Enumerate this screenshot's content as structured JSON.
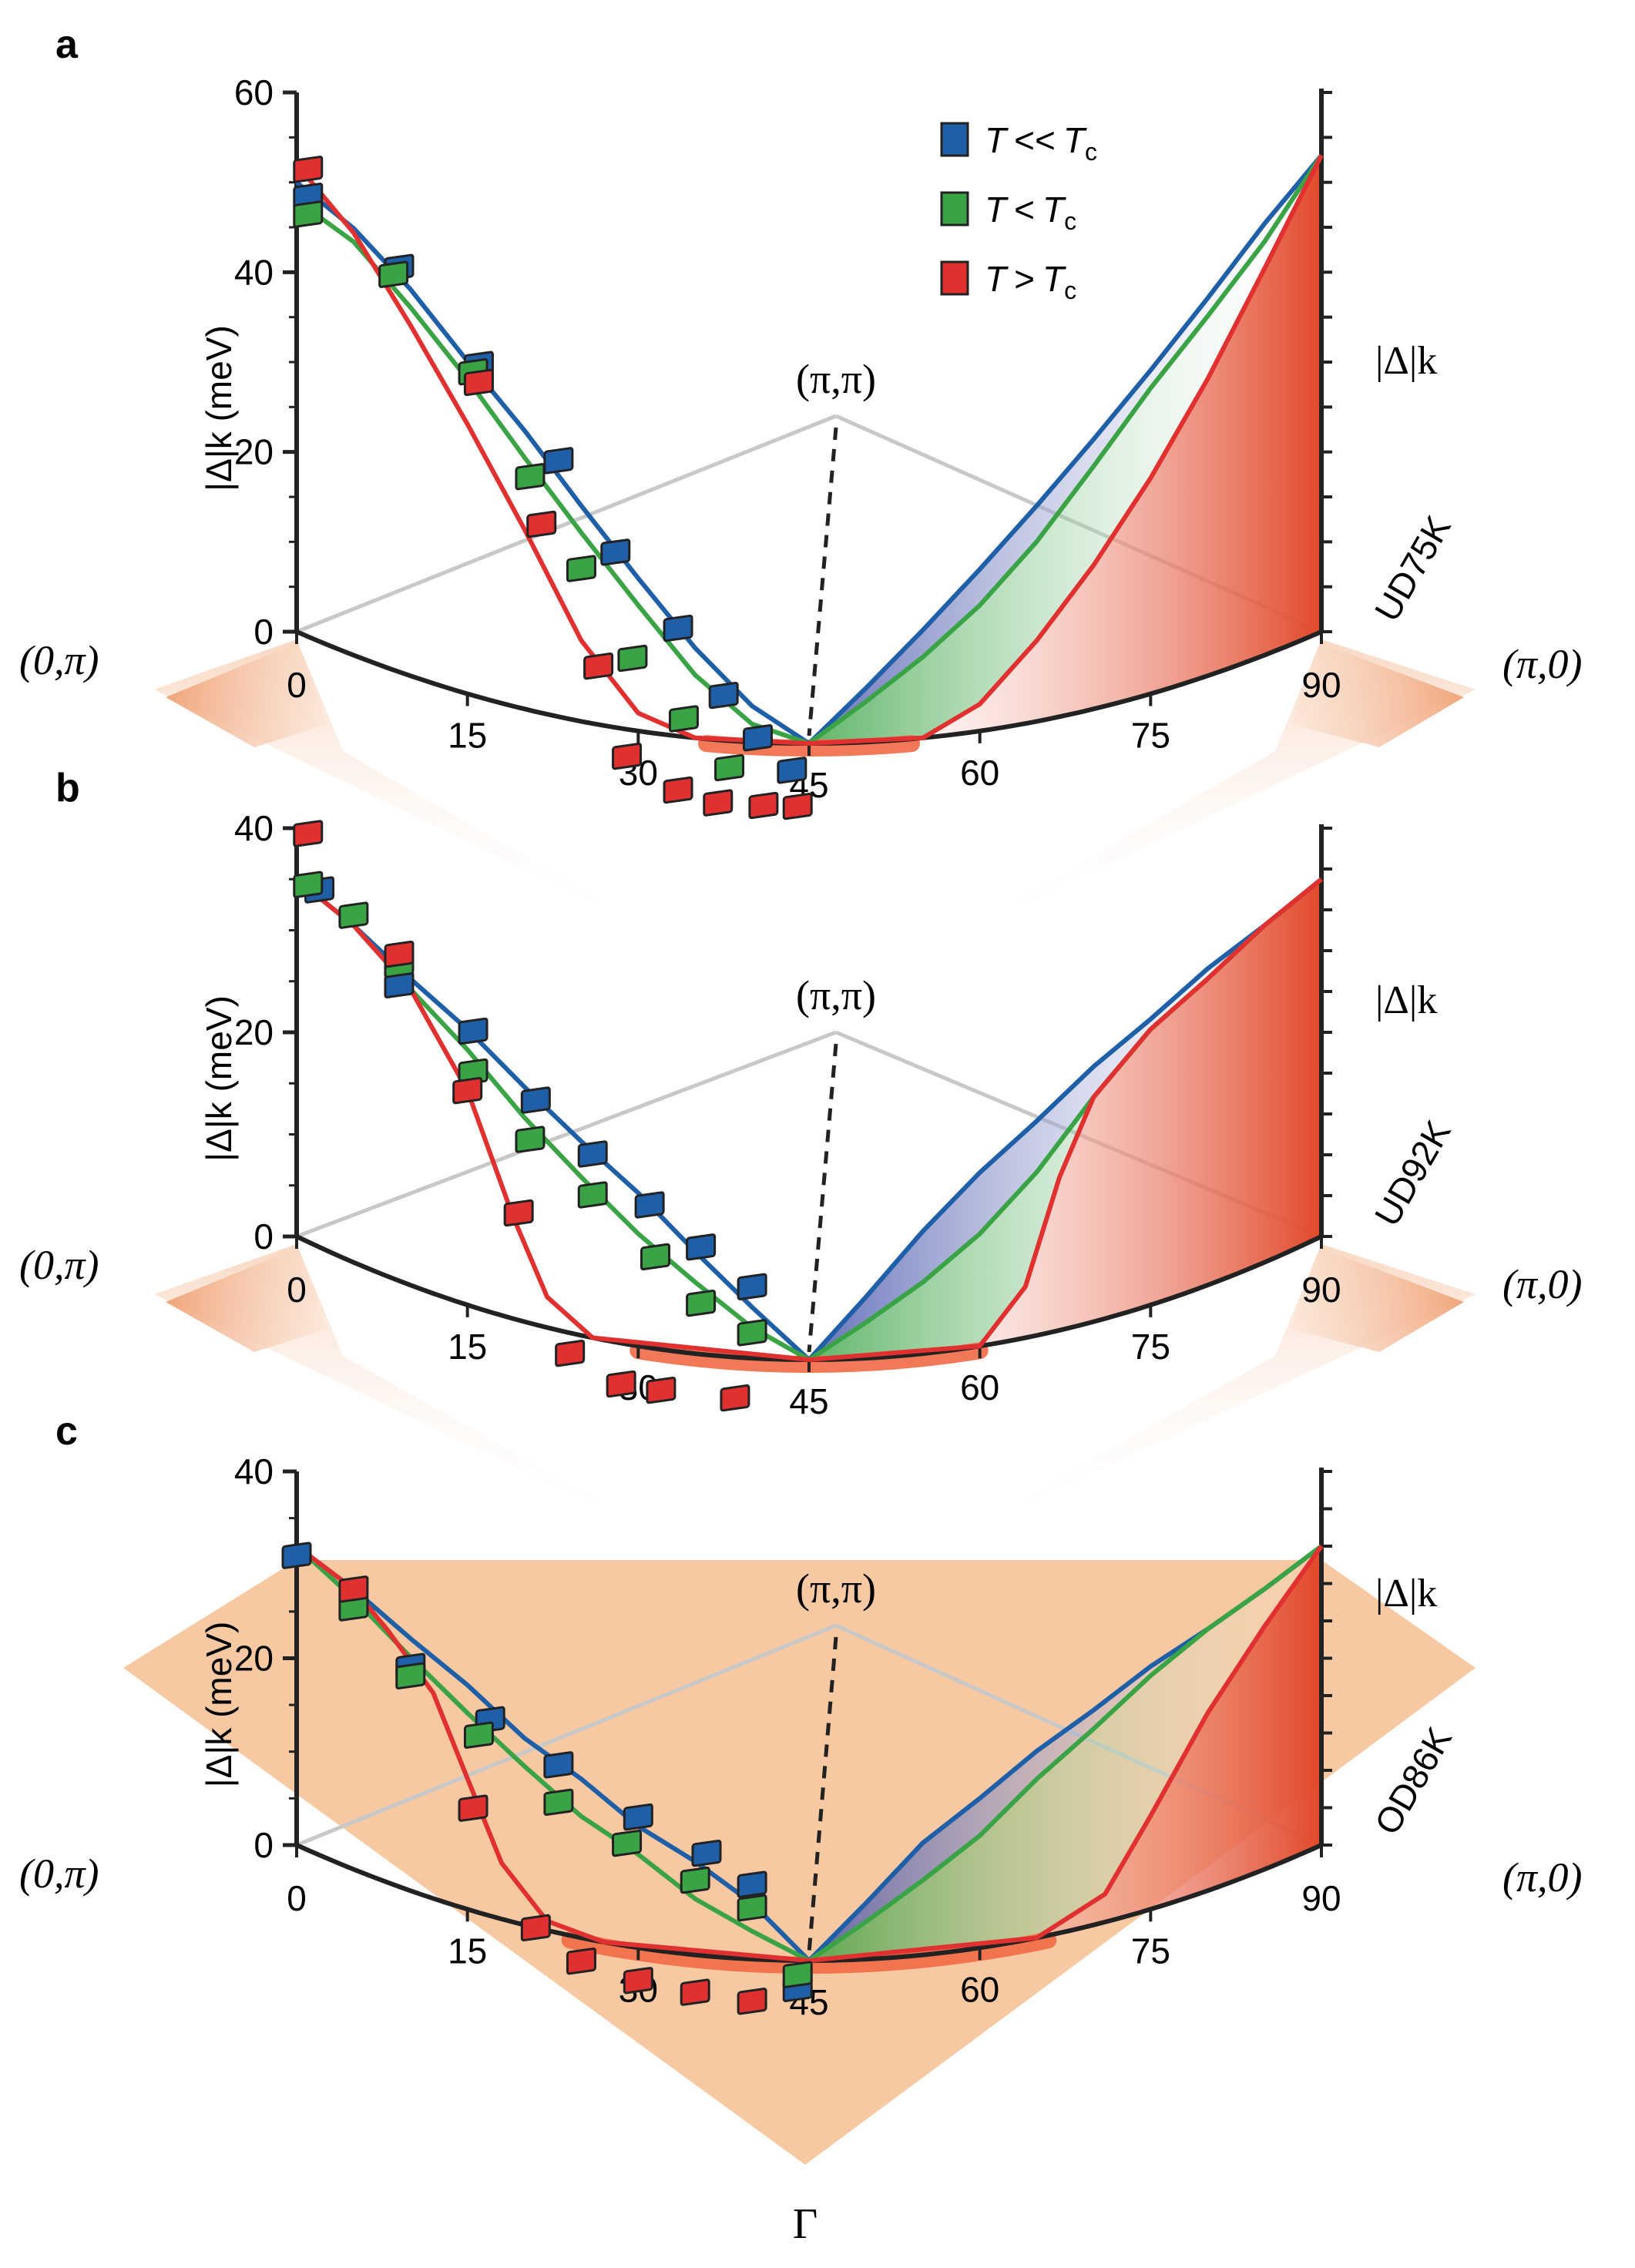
{
  "chart_data": [
    {
      "type": "scatter",
      "panel": "a",
      "sample": "UD75K",
      "ylabel": "|Δ|k (meV)",
      "right_label": "|Δ|k",
      "ylim": [
        0,
        60
      ],
      "yticks": [
        0,
        20,
        40,
        60
      ],
      "xlim": [
        0,
        90
      ],
      "xticks": [
        0,
        15,
        30,
        45,
        60,
        75,
        90
      ],
      "series": [
        {
          "name": "T << Tc",
          "color": "#1f5fa8",
          "points": [
            [
              1,
              49
            ],
            [
              9,
              45
            ],
            [
              16,
              37
            ],
            [
              23,
              28.5
            ],
            [
              28,
              19.5
            ],
            [
              33.5,
              12
            ],
            [
              37.5,
              5
            ],
            [
              40.5,
              0.5
            ],
            [
              43.5,
              -3
            ]
          ],
          "curve": [
            [
              0,
              50
            ],
            [
              5,
              47.5
            ],
            [
              10,
              43
            ],
            [
              15,
              37
            ],
            [
              20,
              31
            ],
            [
              25,
              24
            ],
            [
              30,
              17
            ],
            [
              35,
              10
            ],
            [
              40,
              4
            ],
            [
              45,
              0
            ],
            [
              50,
              6
            ],
            [
              55,
              12
            ],
            [
              60,
              18
            ],
            [
              65,
              24
            ],
            [
              70,
              30
            ],
            [
              75,
              36
            ],
            [
              80,
              42
            ],
            [
              85,
              48
            ],
            [
              90,
              53
            ]
          ]
        },
        {
          "name": "T < Tc",
          "color": "#3aa345",
          "points": [
            [
              1,
              47
            ],
            [
              8.5,
              44
            ],
            [
              15.5,
              36
            ],
            [
              20.5,
              26
            ],
            [
              25,
              17
            ],
            [
              29.5,
              8
            ],
            [
              34,
              2
            ],
            [
              38,
              -3
            ]
          ],
          "curve": [
            [
              0,
              48
            ],
            [
              5,
              46
            ],
            [
              10,
              41
            ],
            [
              15,
              35
            ],
            [
              20,
              28
            ],
            [
              25,
              21
            ],
            [
              30,
              14
            ],
            [
              35,
              7
            ],
            [
              40,
              2
            ],
            [
              45,
              0
            ],
            [
              50,
              4.5
            ],
            [
              55,
              9
            ],
            [
              60,
              14
            ],
            [
              65,
              20
            ],
            [
              70,
              27
            ],
            [
              75,
              34
            ],
            [
              80,
              40
            ],
            [
              85,
              46
            ],
            [
              90,
              53
            ]
          ]
        },
        {
          "name": "T > Tc",
          "color": "#e03030",
          "points": [
            [
              1,
              52
            ],
            [
              16,
              35
            ],
            [
              21.5,
              21
            ],
            [
              26.5,
              6.5
            ],
            [
              29,
              -3
            ],
            [
              33.5,
              -6
            ],
            [
              37,
              -7
            ],
            [
              41,
              -7
            ],
            [
              44,
              -7
            ]
          ],
          "curve": [
            [
              0,
              52
            ],
            [
              5,
              47
            ],
            [
              10,
              39
            ],
            [
              15,
              30
            ],
            [
              20,
              20
            ],
            [
              25,
              9
            ],
            [
              30,
              2
            ],
            [
              35,
              0
            ],
            [
              45,
              0
            ],
            [
              55,
              0
            ],
            [
              60,
              3
            ],
            [
              65,
              9
            ],
            [
              70,
              16
            ],
            [
              75,
              24
            ],
            [
              80,
              33
            ],
            [
              85,
              43
            ],
            [
              90,
              53
            ]
          ]
        }
      ]
    },
    {
      "type": "scatter",
      "panel": "b",
      "sample": "UD92K",
      "ylabel": "|Δ|k (meV)",
      "right_label": "|Δ|k",
      "ylim": [
        0,
        40
      ],
      "yticks": [
        0,
        20,
        40
      ],
      "xlim": [
        0,
        90
      ],
      "xticks": [
        0,
        15,
        30,
        45,
        60,
        75,
        90
      ],
      "series": [
        {
          "name": "T << Tc",
          "color": "#1f5fa8",
          "points": [
            [
              2,
              35
            ],
            [
              9,
              29
            ],
            [
              15.5,
              27
            ],
            [
              21,
              22
            ],
            [
              26,
              18
            ],
            [
              31,
              14
            ],
            [
              35.5,
              10.5
            ],
            [
              40,
              7
            ]
          ],
          "curve": [
            [
              0,
              35
            ],
            [
              5,
              33
            ],
            [
              10,
              30
            ],
            [
              15,
              27
            ],
            [
              20,
              23
            ],
            [
              25,
              19
            ],
            [
              30,
              15
            ],
            [
              35,
              10
            ],
            [
              40,
              5
            ],
            [
              45,
              0
            ],
            [
              50,
              6
            ],
            [
              55,
              12
            ],
            [
              60,
              17
            ],
            [
              65,
              21
            ],
            [
              70,
              25
            ],
            [
              75,
              28
            ],
            [
              80,
              31
            ],
            [
              85,
              33
            ],
            [
              90,
              35
            ]
          ]
        },
        {
          "name": "T < Tc",
          "color": "#3aa345",
          "points": [
            [
              1,
              35
            ],
            [
              5,
              34
            ],
            [
              9,
              31
            ],
            [
              15.5,
              23
            ],
            [
              20.5,
              18
            ],
            [
              26,
              14
            ],
            [
              31.5,
              9
            ],
            [
              35.5,
              5
            ],
            [
              40,
              2.5
            ]
          ],
          "curve": [
            [
              0,
              35
            ],
            [
              5,
              33
            ],
            [
              10,
              29
            ],
            [
              15,
              25
            ],
            [
              20,
              20
            ],
            [
              25,
              15.5
            ],
            [
              30,
              11
            ],
            [
              35,
              7
            ],
            [
              40,
              3
            ],
            [
              45,
              0
            ],
            [
              50,
              3.5
            ],
            [
              55,
              7
            ],
            [
              60,
              11
            ],
            [
              65,
              16
            ],
            [
              70,
              22
            ],
            [
              75,
              27
            ],
            [
              80,
              30
            ],
            [
              85,
              33
            ],
            [
              90,
              35
            ]
          ]
        },
        {
          "name": "T > Tc",
          "color": "#e03030",
          "points": [
            [
              1,
              40
            ],
            [
              9,
              32
            ],
            [
              15,
              21
            ],
            [
              19.5,
              10.5
            ],
            [
              24,
              -2
            ],
            [
              28.5,
              -4
            ],
            [
              32,
              -4
            ],
            [
              38.5,
              -4
            ]
          ],
          "curve": [
            [
              0,
              35
            ],
            [
              5,
              33
            ],
            [
              10,
              29
            ],
            [
              15,
              21
            ],
            [
              19,
              10
            ],
            [
              22,
              3
            ],
            [
              26,
              0
            ],
            [
              45,
              0
            ],
            [
              60,
              0
            ],
            [
              64,
              5
            ],
            [
              67,
              15
            ],
            [
              70,
              22
            ],
            [
              75,
              27
            ],
            [
              80,
              30
            ],
            [
              85,
              33
            ],
            [
              90,
              35
            ]
          ]
        }
      ]
    },
    {
      "type": "scatter",
      "panel": "c",
      "sample": "OD86K",
      "ylabel": "|Δ|k (meV)",
      "right_label": "|Δ|k",
      "ylim": [
        0,
        40
      ],
      "yticks": [
        0,
        20,
        40
      ],
      "xlim": [
        0,
        90
      ],
      "xticks": [
        0,
        15,
        30,
        45,
        60,
        75,
        90
      ],
      "series": [
        {
          "name": "T << Tc",
          "color": "#1f5fa8",
          "points": [
            [
              0,
              31
            ],
            [
              10,
              24
            ],
            [
              17,
              21
            ],
            [
              23,
              18
            ],
            [
              30,
              14
            ],
            [
              36,
              11
            ],
            [
              40,
              8
            ],
            [
              44,
              -3
            ]
          ],
          "curve": [
            [
              0,
              32
            ],
            [
              5,
              30
            ],
            [
              10,
              27
            ],
            [
              15,
              24
            ],
            [
              20,
              20
            ],
            [
              25,
              17
            ],
            [
              30,
              13
            ],
            [
              35,
              10
            ],
            [
              40,
              6
            ],
            [
              45,
              0
            ],
            [
              50,
              6
            ],
            [
              55,
              12
            ],
            [
              60,
              16
            ],
            [
              65,
              20
            ],
            [
              70,
              23
            ],
            [
              75,
              26
            ],
            [
              80,
              28
            ],
            [
              85,
              30
            ],
            [
              90,
              32
            ]
          ]
        },
        {
          "name": "T < Tc",
          "color": "#3aa345",
          "points": [
            [
              5,
              28
            ],
            [
              10,
              23
            ],
            [
              16,
              19
            ],
            [
              23,
              14
            ],
            [
              29,
              11
            ],
            [
              35,
              8
            ],
            [
              40,
              5.5
            ],
            [
              44,
              -1.5
            ]
          ],
          "curve": [
            [
              0,
              32
            ],
            [
              5,
              29
            ],
            [
              10,
              25
            ],
            [
              15,
              21
            ],
            [
              20,
              17
            ],
            [
              25,
              13
            ],
            [
              30,
              10
            ],
            [
              35,
              6
            ],
            [
              40,
              3
            ],
            [
              45,
              0
            ],
            [
              50,
              4
            ],
            [
              55,
              8
            ],
            [
              60,
              12
            ],
            [
              65,
              17
            ],
            [
              70,
              21
            ],
            [
              75,
              25
            ],
            [
              80,
              28
            ],
            [
              85,
              30
            ],
            [
              90,
              32
            ]
          ]
        },
        {
          "name": "T > Tc",
          "color": "#e03030",
          "points": [
            [
              5,
              30
            ],
            [
              15.5,
              11
            ],
            [
              21,
              0
            ],
            [
              25,
              -2.5
            ],
            [
              30,
              -3.5
            ],
            [
              35,
              -4
            ],
            [
              40,
              -4.5
            ]
          ],
          "curve": [
            [
              0,
              32
            ],
            [
              5,
              30
            ],
            [
              8,
              27
            ],
            [
              12,
              22
            ],
            [
              15,
              14
            ],
            [
              18,
              6
            ],
            [
              22,
              1
            ],
            [
              27,
              0
            ],
            [
              45,
              0
            ],
            [
              65,
              0
            ],
            [
              71,
              3
            ],
            [
              75,
              10
            ],
            [
              80,
              19
            ],
            [
              85,
              26
            ],
            [
              90,
              32
            ]
          ]
        }
      ]
    }
  ],
  "legend": [
    {
      "label_t": "T",
      "label_op": "<<",
      "label_tc": "T",
      "label_sub": "c",
      "color": "#1f5fa8"
    },
    {
      "label_t": "T",
      "label_op": "<",
      "label_tc": "T",
      "label_sub": "c",
      "color": "#3aa345"
    },
    {
      "label_t": "T",
      "label_op": ">",
      "label_tc": "T",
      "label_sub": "c",
      "color": "#e03030"
    }
  ],
  "labels": {
    "zero_pi": "(0,π)",
    "pi_zero": "(π,0)",
    "pi_pi": "(π,π)",
    "gamma": "Γ"
  }
}
